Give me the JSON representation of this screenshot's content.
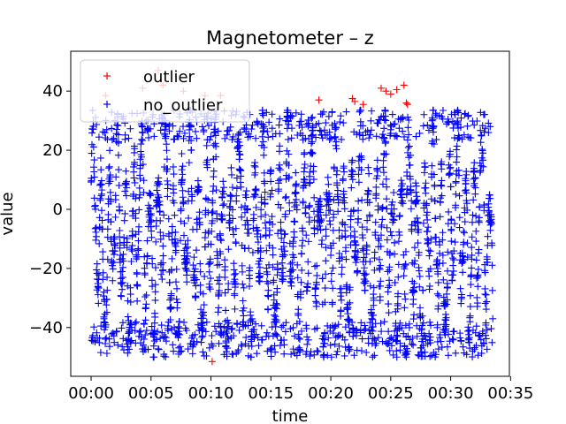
{
  "chart_data": {
    "type": "scatter",
    "title": "Magnetometer – z",
    "xlabel": "time",
    "ylabel": "value",
    "xlim_minutes": [
      -1.7,
      34.9
    ],
    "ylim": [
      -56.5,
      53.5
    ],
    "x_ticks": [
      {
        "minutes": 0,
        "label": "00:00"
      },
      {
        "minutes": 5,
        "label": "00:05"
      },
      {
        "minutes": 10,
        "label": "00:10"
      },
      {
        "minutes": 15,
        "label": "00:15"
      },
      {
        "minutes": 20,
        "label": "00:20"
      },
      {
        "minutes": 25,
        "label": "00:25"
      },
      {
        "minutes": 30,
        "label": "00:30"
      },
      {
        "minutes": 35,
        "label": "00:35"
      }
    ],
    "y_ticks": [
      {
        "value": 40,
        "label": "40"
      },
      {
        "value": 20,
        "label": "20"
      },
      {
        "value": 0,
        "label": "0"
      },
      {
        "value": -20,
        "label": "−20"
      },
      {
        "value": -40,
        "label": "−40"
      }
    ],
    "x_extent_minutes": [
      0,
      33.5
    ],
    "marker": "+",
    "legend_position": "top-left",
    "series": [
      {
        "name": "outlier",
        "color": "#ff0000",
        "x": [
          1.2,
          4.3,
          5.6,
          6.0,
          7.7,
          9.5,
          10.1,
          10.8,
          19.0,
          21.8,
          22.0,
          22.7,
          24.2,
          24.6,
          25.0,
          25.5,
          26.1,
          26.3,
          26.4
        ],
        "y": [
          38.5,
          41,
          47,
          42,
          40,
          38.5,
          -51.5,
          38.5,
          37,
          37.5,
          36.5,
          35.5,
          41,
          40,
          39,
          40.5,
          42,
          36,
          35.5
        ]
      },
      {
        "name": "no_outlier",
        "color": "#0000ff",
        "y_range": [
          -50,
          33.5
        ],
        "x_range_minutes": [
          0,
          33.5
        ]
      }
    ]
  }
}
